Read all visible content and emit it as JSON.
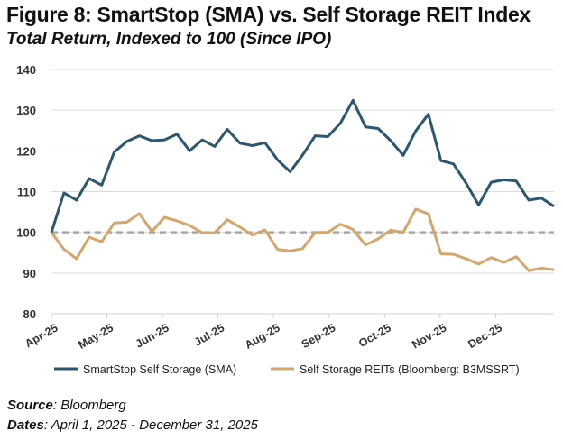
{
  "chart_data": {
    "type": "line",
    "title": "Figure 8: SmartStop (SMA) vs. Self Storage REIT Index",
    "subtitle": "Total Return, Indexed to 100 (Since IPO)",
    "xlabel": "",
    "ylabel": "",
    "ylim": [
      80,
      140
    ],
    "yticks": [
      80,
      90,
      100,
      110,
      120,
      130,
      140
    ],
    "xtick_labels": [
      "Apr-25",
      "May-25",
      "Jun-25",
      "Jul-25",
      "Aug-25",
      "Sep-25",
      "Oct-25",
      "Nov-25",
      "Dec-25"
    ],
    "grid": true,
    "reference_line": 100,
    "legend_position": "bottom",
    "series": [
      {
        "name": "SmartStop Self Storage (SMA)",
        "color": "#2b5770",
        "values": [
          100,
          109.7,
          107.9,
          113.2,
          111.6,
          119.7,
          122.3,
          123.7,
          122.5,
          122.7,
          124.1,
          120.0,
          122.7,
          121.1,
          125.3,
          121.9,
          121.3,
          122.0,
          117.8,
          114.9,
          119.0,
          123.7,
          123.5,
          126.8,
          132.4,
          125.9,
          125.5,
          122.5,
          118.9,
          124.9,
          129.0,
          117.6,
          116.8,
          112.1,
          106.7,
          112.3,
          112.9,
          112.6,
          107.9,
          108.4,
          106.4
        ]
      },
      {
        "name": "Self Storage REITs (Bloomberg: B3MSSRT)",
        "color": "#d4a66a",
        "values": [
          100,
          95.8,
          93.5,
          98.8,
          97.7,
          102.3,
          102.5,
          104.6,
          100.2,
          103.7,
          102.8,
          101.7,
          99.9,
          99.9,
          103.1,
          101.3,
          99.3,
          100.6,
          95.8,
          95.4,
          96.0,
          100.0,
          100.0,
          102.0,
          100.7,
          96.9,
          98.4,
          100.5,
          100.0,
          105.7,
          104.5,
          94.7,
          94.6,
          93.5,
          92.2,
          93.8,
          92.6,
          94.0,
          90.6,
          91.2,
          90.8
        ]
      }
    ]
  },
  "footer": {
    "source_label": "Source",
    "source_value": ": Bloomberg",
    "dates_label": "Dates",
    "dates_value": ": April 1, 2025 - December 31, 2025"
  }
}
